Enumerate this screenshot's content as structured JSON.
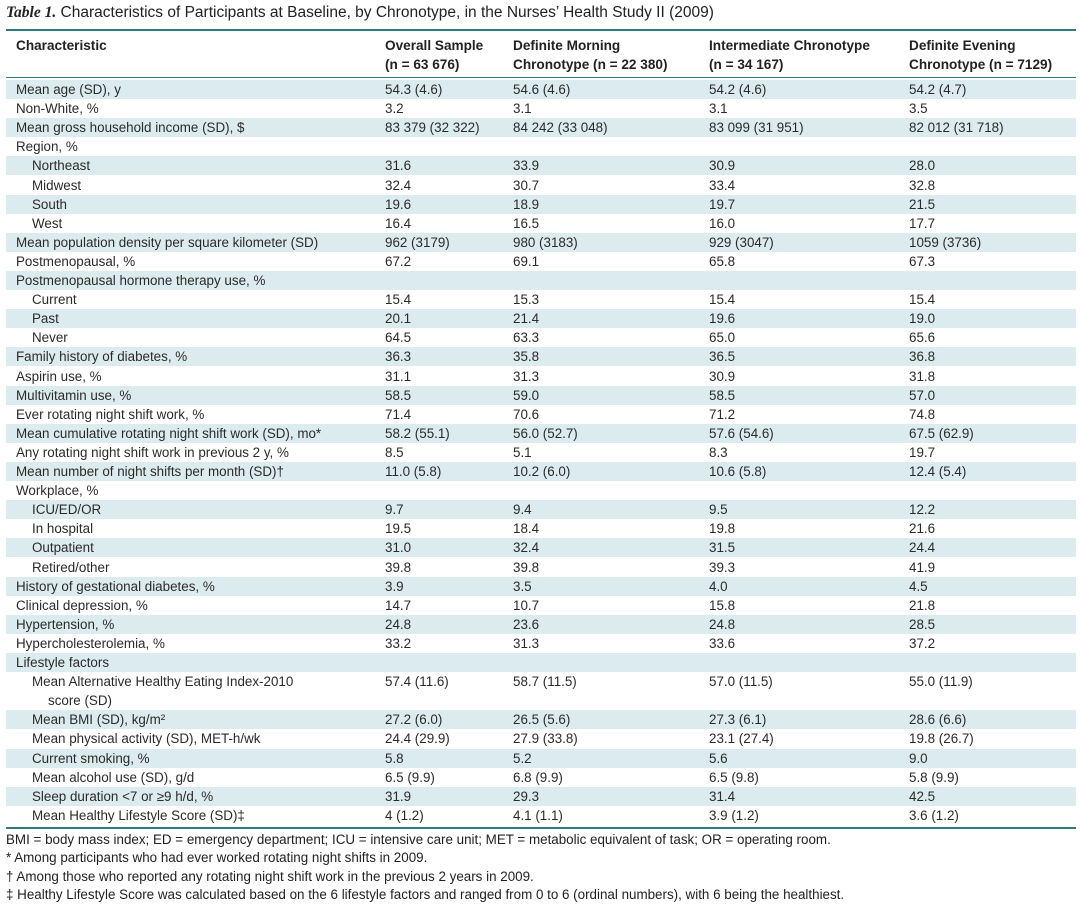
{
  "table": {
    "title_label": "Table 1.",
    "title_text": "Characteristics of Participants at Baseline, by Chronotype, in the Nurses’ Health Study II (2009)",
    "headers": [
      {
        "line1": "Characteristic",
        "line2": ""
      },
      {
        "line1": "Overall Sample",
        "line2": "(n = 63 676)"
      },
      {
        "line1": "Definite Morning",
        "line2": "Chronotype (n = 22 380)"
      },
      {
        "line1": "Intermediate Chronotype",
        "line2": "(n = 34 167)"
      },
      {
        "line1": "Definite Evening",
        "line2": "Chronotype (n = 7129)"
      }
    ],
    "rows": [
      {
        "label": "Mean age (SD), y",
        "indent": false,
        "values": [
          "54.3 (4.6)",
          "54.6 (4.6)",
          "54.2 (4.6)",
          "54.2 (4.7)"
        ]
      },
      {
        "label": "Non-White, %",
        "indent": false,
        "values": [
          "3.2",
          "3.1",
          "3.1",
          "3.5"
        ]
      },
      {
        "label": "Mean gross household income (SD), $",
        "indent": false,
        "values": [
          "83 379 (32 322)",
          "84 242 (33 048)",
          "83 099 (31 951)",
          "82 012 (31 718)"
        ]
      },
      {
        "label": "Region, %",
        "indent": false,
        "values": [
          "",
          "",
          "",
          ""
        ]
      },
      {
        "label": "Northeast",
        "indent": true,
        "values": [
          "31.6",
          "33.9",
          "30.9",
          "28.0"
        ]
      },
      {
        "label": "Midwest",
        "indent": true,
        "values": [
          "32.4",
          "30.7",
          "33.4",
          "32.8"
        ]
      },
      {
        "label": "South",
        "indent": true,
        "values": [
          "19.6",
          "18.9",
          "19.7",
          "21.5"
        ]
      },
      {
        "label": "West",
        "indent": true,
        "values": [
          "16.4",
          "16.5",
          "16.0",
          "17.7"
        ]
      },
      {
        "label": "Mean population density per square kilometer (SD)",
        "indent": false,
        "values": [
          "962 (3179)",
          "980 (3183)",
          "929 (3047)",
          "1059 (3736)"
        ]
      },
      {
        "label": "Postmenopausal, %",
        "indent": false,
        "values": [
          "67.2",
          "69.1",
          "65.8",
          "67.3"
        ]
      },
      {
        "label": "Postmenopausal hormone therapy use, %",
        "indent": false,
        "values": [
          "",
          "",
          "",
          ""
        ]
      },
      {
        "label": "Current",
        "indent": true,
        "values": [
          "15.4",
          "15.3",
          "15.4",
          "15.4"
        ]
      },
      {
        "label": "Past",
        "indent": true,
        "values": [
          "20.1",
          "21.4",
          "19.6",
          "19.0"
        ]
      },
      {
        "label": "Never",
        "indent": true,
        "values": [
          "64.5",
          "63.3",
          "65.0",
          "65.6"
        ]
      },
      {
        "label": "Family history of diabetes, %",
        "indent": false,
        "values": [
          "36.3",
          "35.8",
          "36.5",
          "36.8"
        ]
      },
      {
        "label": "Aspirin use, %",
        "indent": false,
        "values": [
          "31.1",
          "31.3",
          "30.9",
          "31.8"
        ]
      },
      {
        "label": "Multivitamin use, %",
        "indent": false,
        "values": [
          "58.5",
          "59.0",
          "58.5",
          "57.0"
        ]
      },
      {
        "label": "Ever rotating night shift work, %",
        "indent": false,
        "values": [
          "71.4",
          "70.6",
          "71.2",
          "74.8"
        ]
      },
      {
        "label": "Mean cumulative rotating night shift work (SD), mo*",
        "indent": false,
        "values": [
          "58.2 (55.1)",
          "56.0 (52.7)",
          "57.6 (54.6)",
          "67.5 (62.9)"
        ]
      },
      {
        "label": "Any rotating night shift work in previous 2 y, %",
        "indent": false,
        "values": [
          "8.5",
          "5.1",
          "8.3",
          "19.7"
        ]
      },
      {
        "label": "Mean number of night shifts per month (SD)†",
        "indent": false,
        "values": [
          "11.0 (5.8)",
          "10.2 (6.0)",
          "10.6 (5.8)",
          "12.4 (5.4)"
        ]
      },
      {
        "label": "Workplace, %",
        "indent": false,
        "values": [
          "",
          "",
          "",
          ""
        ]
      },
      {
        "label": "ICU/ED/OR",
        "indent": true,
        "values": [
          "9.7",
          "9.4",
          "9.5",
          "12.2"
        ]
      },
      {
        "label": "In hospital",
        "indent": true,
        "values": [
          "19.5",
          "18.4",
          "19.8",
          "21.6"
        ]
      },
      {
        "label": "Outpatient",
        "indent": true,
        "values": [
          "31.0",
          "32.4",
          "31.5",
          "24.4"
        ]
      },
      {
        "label": "Retired/other",
        "indent": true,
        "values": [
          "39.8",
          "39.8",
          "39.3",
          "41.9"
        ]
      },
      {
        "label": "History of gestational diabetes, %",
        "indent": false,
        "values": [
          "3.9",
          "3.5",
          "4.0",
          "4.5"
        ]
      },
      {
        "label": "Clinical depression, %",
        "indent": false,
        "values": [
          "14.7",
          "10.7",
          "15.8",
          "21.8"
        ]
      },
      {
        "label": "Hypertension, %",
        "indent": false,
        "values": [
          "24.8",
          "23.6",
          "24.8",
          "28.5"
        ]
      },
      {
        "label": "Hypercholesterolemia, %",
        "indent": false,
        "values": [
          "33.2",
          "31.3",
          "33.6",
          "37.2"
        ]
      },
      {
        "label": "Lifestyle factors",
        "indent": false,
        "values": [
          "",
          "",
          "",
          ""
        ]
      },
      {
        "label": "Mean Alternative Healthy Eating Index-2010",
        "label2": "score (SD)",
        "indent": true,
        "values": [
          "57.4 (11.6)",
          "58.7 (11.5)",
          "57.0 (11.5)",
          "55.0 (11.9)"
        ]
      },
      {
        "label": "Mean BMI (SD), kg/m²",
        "indent": true,
        "values": [
          "27.2 (6.0)",
          "26.5 (5.6)",
          "27.3 (6.1)",
          "28.6 (6.6)"
        ]
      },
      {
        "label": "Mean physical activity (SD), MET-h/wk",
        "indent": true,
        "values": [
          "24.4 (29.9)",
          "27.9 (33.8)",
          "23.1 (27.4)",
          "19.8 (26.7)"
        ]
      },
      {
        "label": "Current smoking, %",
        "indent": true,
        "values": [
          "5.8",
          "5.2",
          "5.6",
          "9.0"
        ]
      },
      {
        "label": "Mean alcohol use (SD), g/d",
        "indent": true,
        "values": [
          "6.5 (9.9)",
          "6.8 (9.9)",
          "6.5 (9.8)",
          "5.8 (9.9)"
        ]
      },
      {
        "label": "Sleep duration <7 or ≥9 h/d, %",
        "indent": true,
        "values": [
          "31.9",
          "29.3",
          "31.4",
          "42.5"
        ]
      },
      {
        "label": "Mean Healthy Lifestyle Score (SD)‡",
        "indent": true,
        "values": [
          "4 (1.2)",
          "4.1 (1.1)",
          "3.9 (1.2)",
          "3.6 (1.2)"
        ]
      }
    ],
    "footnotes": [
      "BMI = body mass index; ED = emergency department; ICU = intensive care unit; MET = metabolic equivalent of task; OR = operating room.",
      "* Among participants who had ever worked rotating night shifts in 2009.",
      "† Among those who reported any rotating night shift work in the previous 2 years in 2009.",
      "‡ Healthy Lifestyle Score was calculated based on the 6 lifestyle factors and ranged from 0 to 6 (ordinal numbers), with 6 being the healthiest."
    ]
  },
  "colors": {
    "accent_rule": "#2e7c83",
    "row_shade": "#dcebed"
  }
}
